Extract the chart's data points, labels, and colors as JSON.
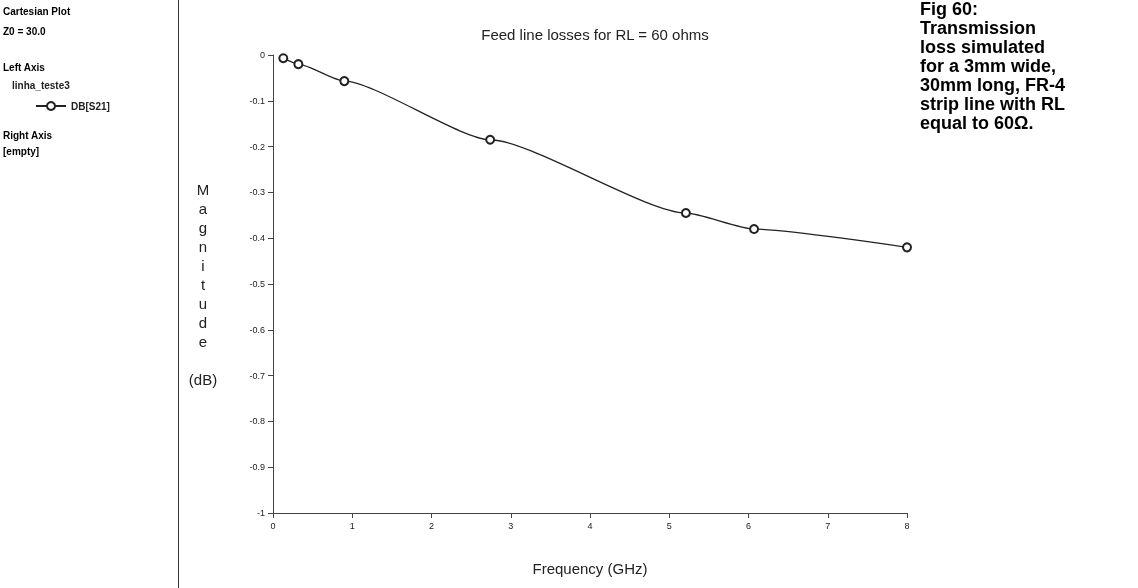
{
  "chart_data": {
    "type": "line",
    "title": "Feed line losses for RL = 60 ohms",
    "xlabel": "Frequency (GHz)",
    "ylabel": "Magnitude (dB)",
    "legend_title": "linha_teste3",
    "legend": "left",
    "marker": "circle",
    "line_style": "solid",
    "grid": false,
    "x": [
      0.13,
      0.32,
      0.9,
      2.74,
      5.21,
      6.07,
      8
    ],
    "series": [
      {
        "name": "DB[S21]",
        "color": "#222222",
        "values": [
          -0.007,
          -0.02,
          -0.057,
          -0.185,
          -0.345,
          -0.38,
          -0.42
        ]
      }
    ],
    "xlim": [
      0,
      8
    ],
    "xticks": [
      0,
      1,
      2,
      3,
      4,
      5,
      6,
      7,
      8
    ],
    "ylim": [
      -1,
      0
    ],
    "yticks": [
      0,
      -0.1,
      -0.2,
      -0.3,
      -0.4,
      -0.5,
      -0.6,
      -0.7,
      -0.8,
      -0.9,
      -1
    ],
    "annotations": [
      "Cartesian Plot",
      "Z0 = 30.0",
      "Left Axis",
      "Right Axis",
      "[empty]",
      "Fig 60: Transmission loss simulated for a 3mm wide, 30mm long, FR-4 strip line with RL equal to 60Ω."
    ]
  }
}
